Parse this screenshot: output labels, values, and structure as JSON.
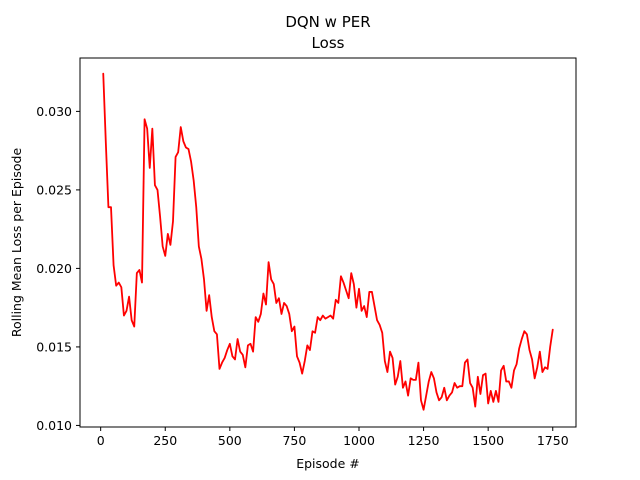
{
  "chart_data": {
    "type": "line",
    "title_lines": [
      "DQN w PER",
      "Loss"
    ],
    "xlabel": "Episode #",
    "ylabel": "Rolling Mean Loss per Episode",
    "xlim": [
      -80,
      1840
    ],
    "ylim": [
      0.0099,
      0.0334
    ],
    "xticks": [
      0,
      250,
      500,
      750,
      1000,
      1250,
      1500,
      1750
    ],
    "xtick_labels": [
      "0",
      "250",
      "500",
      "750",
      "1000",
      "1250",
      "1500",
      "1750"
    ],
    "yticks": [
      0.01,
      0.015,
      0.02,
      0.025,
      0.03
    ],
    "ytick_labels": [
      "0.010",
      "0.015",
      "0.020",
      "0.025",
      "0.030"
    ],
    "grid": false,
    "legend": "none",
    "series": [
      {
        "color": "#ff0000",
        "x": [
          10,
          20,
          30,
          40,
          50,
          60,
          70,
          80,
          90,
          100,
          110,
          120,
          130,
          140,
          150,
          160,
          170,
          180,
          190,
          200,
          210,
          220,
          230,
          240,
          250,
          260,
          270,
          280,
          290,
          300,
          310,
          320,
          330,
          340,
          350,
          360,
          370,
          380,
          390,
          400,
          410,
          420,
          430,
          440,
          450,
          460,
          470,
          480,
          490,
          500,
          510,
          520,
          530,
          540,
          550,
          560,
          570,
          580,
          590,
          600,
          610,
          620,
          630,
          640,
          650,
          660,
          670,
          680,
          690,
          700,
          710,
          720,
          730,
          740,
          750,
          760,
          770,
          780,
          790,
          800,
          810,
          820,
          830,
          840,
          850,
          860,
          870,
          880,
          890,
          900,
          910,
          920,
          930,
          940,
          950,
          960,
          970,
          980,
          990,
          1000,
          1010,
          1020,
          1030,
          1040,
          1050,
          1060,
          1070,
          1080,
          1090,
          1100,
          1110,
          1120,
          1130,
          1140,
          1150,
          1160,
          1170,
          1180,
          1190,
          1200,
          1210,
          1220,
          1230,
          1240,
          1250,
          1260,
          1270,
          1280,
          1290,
          1300,
          1310,
          1320,
          1330,
          1340,
          1350,
          1360,
          1370,
          1380,
          1390,
          1400,
          1410,
          1420,
          1430,
          1440,
          1450,
          1460,
          1470,
          1480,
          1490,
          1500,
          1510,
          1520,
          1530,
          1540,
          1550,
          1560,
          1570,
          1580,
          1590,
          1600,
          1610,
          1620,
          1630,
          1640,
          1650,
          1660,
          1670,
          1680,
          1690,
          1700,
          1710,
          1720,
          1730,
          1740,
          1750
        ],
        "y": [
          0.0324,
          0.028,
          0.0239,
          0.0239,
          0.0202,
          0.0189,
          0.0191,
          0.0188,
          0.017,
          0.0173,
          0.0182,
          0.0167,
          0.0163,
          0.0197,
          0.0199,
          0.0191,
          0.0295,
          0.0289,
          0.0264,
          0.0289,
          0.0253,
          0.025,
          0.0233,
          0.0214,
          0.0208,
          0.0222,
          0.0215,
          0.023,
          0.0271,
          0.0274,
          0.029,
          0.0281,
          0.0277,
          0.0276,
          0.0268,
          0.0256,
          0.0239,
          0.0214,
          0.0206,
          0.0193,
          0.0173,
          0.0183,
          0.0169,
          0.016,
          0.0158,
          0.0136,
          0.014,
          0.0143,
          0.0148,
          0.0152,
          0.0144,
          0.0142,
          0.0155,
          0.0147,
          0.0145,
          0.0137,
          0.0151,
          0.0152,
          0.0147,
          0.0169,
          0.0166,
          0.0171,
          0.0184,
          0.0177,
          0.0204,
          0.0193,
          0.019,
          0.0178,
          0.0181,
          0.0171,
          0.0178,
          0.0176,
          0.0171,
          0.016,
          0.0163,
          0.0144,
          0.014,
          0.0133,
          0.0141,
          0.0151,
          0.0148,
          0.016,
          0.0159,
          0.0169,
          0.0167,
          0.017,
          0.0168,
          0.0169,
          0.017,
          0.0168,
          0.018,
          0.0178,
          0.0195,
          0.0191,
          0.0186,
          0.0181,
          0.0197,
          0.019,
          0.0175,
          0.0187,
          0.0173,
          0.0176,
          0.0169,
          0.0185,
          0.0185,
          0.0176,
          0.0167,
          0.0164,
          0.0159,
          0.0141,
          0.0134,
          0.0147,
          0.0143,
          0.0126,
          0.0131,
          0.0141,
          0.0124,
          0.0128,
          0.0119,
          0.013,
          0.0129,
          0.0129,
          0.014,
          0.0116,
          0.011,
          0.0119,
          0.0128,
          0.0134,
          0.013,
          0.0121,
          0.0116,
          0.0118,
          0.0124,
          0.0116,
          0.0119,
          0.0121,
          0.0127,
          0.0124,
          0.0125,
          0.0125,
          0.014,
          0.0142,
          0.0127,
          0.0124,
          0.0112,
          0.0131,
          0.012,
          0.0132,
          0.0133,
          0.0114,
          0.0122,
          0.0115,
          0.0122,
          0.0115,
          0.0135,
          0.0138,
          0.0128,
          0.0128,
          0.0124,
          0.0135,
          0.0139,
          0.0149,
          0.0155,
          0.016,
          0.0158,
          0.0148,
          0.0142,
          0.013,
          0.0137,
          0.0147,
          0.0134,
          0.0137,
          0.0136,
          0.015,
          0.0161
        ]
      }
    ]
  }
}
